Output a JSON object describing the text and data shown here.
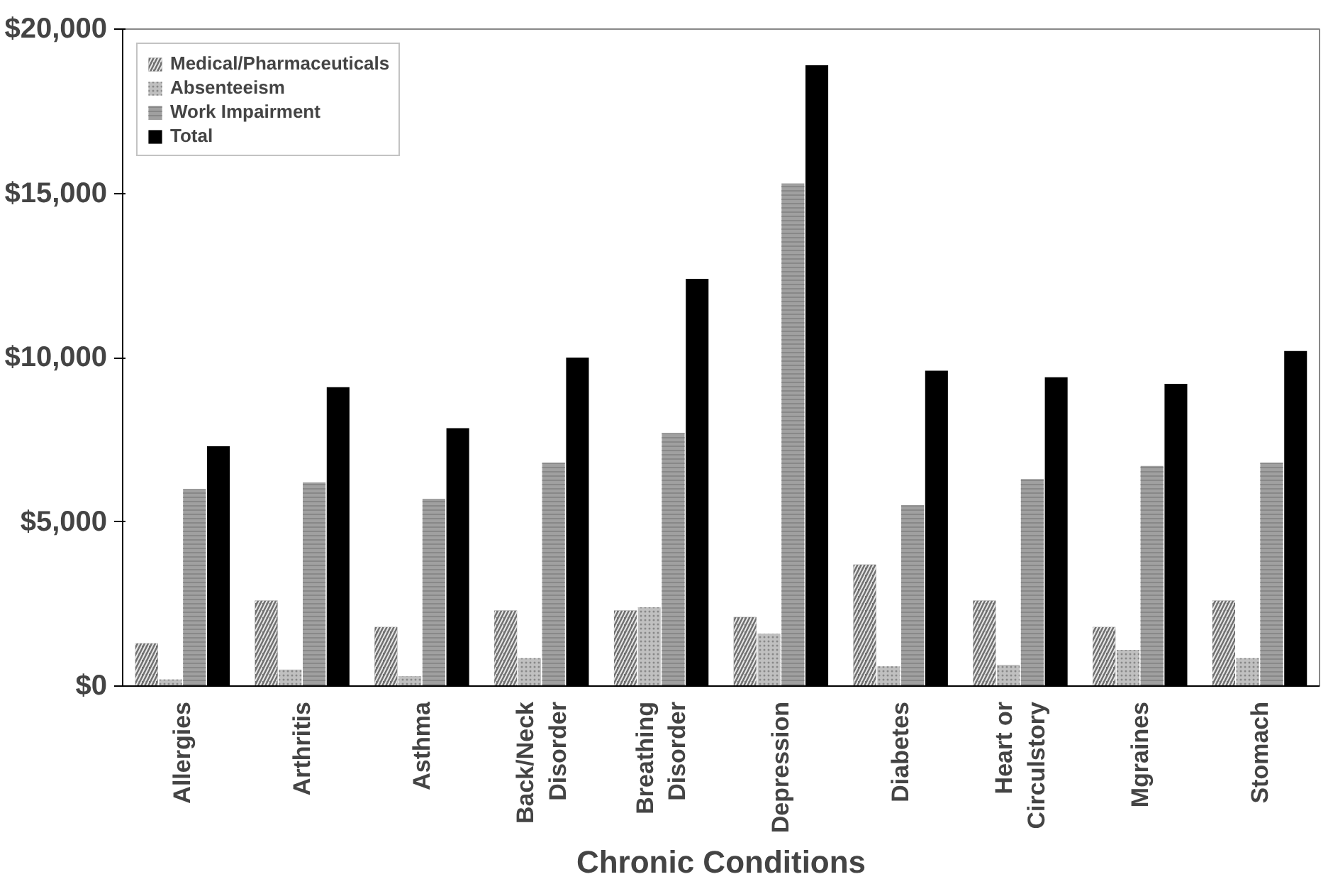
{
  "chart_data": {
    "type": "bar",
    "xlabel": "Chronic Conditions",
    "categories": [
      "Allergies",
      "Arthritis",
      "Asthma",
      "Back/Neck Disorder",
      "Breathing Disorder",
      "Depression",
      "Diabetes",
      "Heart or Circulstory",
      "Mgraines",
      "Stomach"
    ],
    "series": [
      {
        "name": "Medical/Pharmaceuticals",
        "color": "#707070",
        "values": [
          1300,
          2600,
          1800,
          2300,
          2300,
          2100,
          3700,
          2600,
          1800,
          2600
        ]
      },
      {
        "name": "Absenteeism",
        "color": "#c0c0c0",
        "values": [
          200,
          500,
          300,
          850,
          2400,
          1600,
          600,
          650,
          1100,
          850
        ]
      },
      {
        "name": "Work Impairment",
        "color": "#a0a0a0",
        "values": [
          6000,
          6200,
          5700,
          6800,
          7700,
          15300,
          5500,
          6300,
          6700,
          6800
        ]
      },
      {
        "name": "Total",
        "color": "#000000",
        "values": [
          7300,
          9100,
          7850,
          10000,
          12400,
          18900,
          9600,
          9400,
          9200,
          10200
        ]
      }
    ],
    "ylim": [
      0,
      20000
    ],
    "yticks": [
      {
        "value": 0,
        "label": "$0"
      },
      {
        "value": 5000,
        "label": "$5,000"
      },
      {
        "value": 10000,
        "label": "$10,000"
      },
      {
        "value": 15000,
        "label": "$15,000"
      },
      {
        "value": 20000,
        "label": "$20,000"
      }
    ],
    "legend": "top left"
  }
}
